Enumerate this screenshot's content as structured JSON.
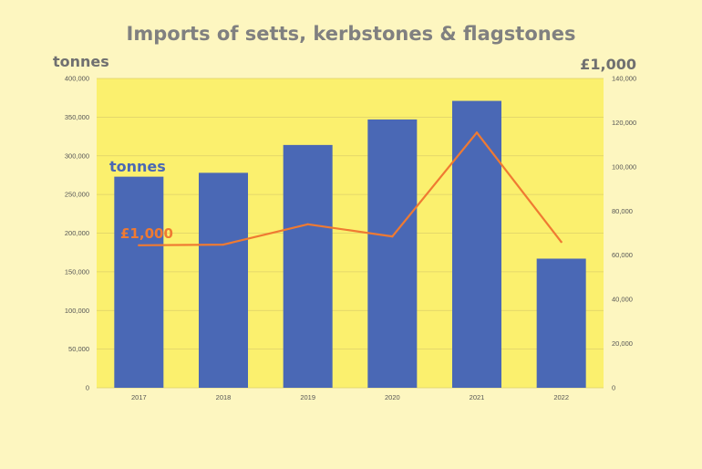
{
  "chart_data": {
    "type": "bar",
    "title": "Imports of setts, kerbstones & flagstones",
    "categories": [
      "2017",
      "2018",
      "2019",
      "2020",
      "2021",
      "2022"
    ],
    "left_axis": {
      "unit_label": "tonnes",
      "ylim": [
        0,
        400000
      ],
      "ticks": [
        "0",
        "50,000",
        "100,000",
        "150,000",
        "200,000",
        "250,000",
        "300,000",
        "350,000",
        "400,000"
      ]
    },
    "right_axis": {
      "unit_label": "£1,000",
      "ylim": [
        0,
        140000
      ],
      "ticks": [
        "0",
        "20,000",
        "40,000",
        "60,000",
        "80,000",
        "100,000",
        "120,000",
        "140,000"
      ]
    },
    "series": [
      {
        "name": "tonnes",
        "type": "bar",
        "axis": "left",
        "color": "#4a68b5",
        "values": [
          273000,
          278000,
          314000,
          347000,
          371000,
          167000
        ]
      },
      {
        "name": "£1,000",
        "type": "line",
        "axis": "right",
        "color": "#ef7a32",
        "values": [
          64500,
          64800,
          74000,
          68500,
          115500,
          66000
        ]
      }
    ],
    "grid": true,
    "plot_background": "#fbf06e",
    "page_background": "#fdf6c0"
  }
}
